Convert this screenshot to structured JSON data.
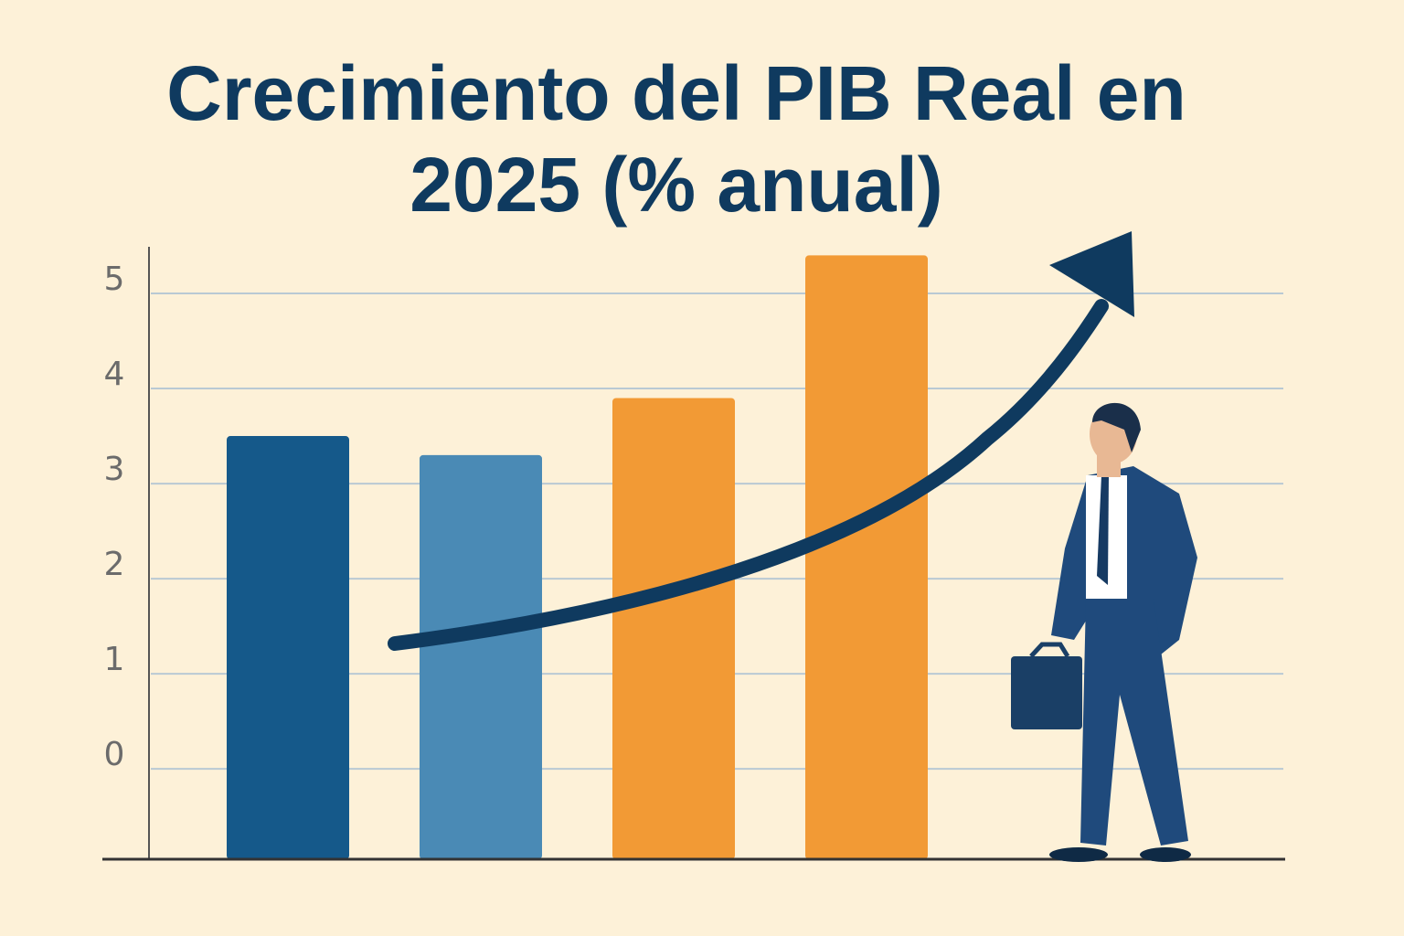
{
  "chart_data": {
    "type": "bar",
    "title": "Crecimiento del PIB Real en 2025 (% anual)",
    "categories": [
      null,
      null,
      null,
      null
    ],
    "values": [
      3.5,
      3.3,
      3.9,
      5.4
    ],
    "colors": [
      "#15598a",
      "#4a8ab5",
      "#f29a35",
      "#f29a35"
    ],
    "ylim": [
      -0.95,
      5.5
    ],
    "yticks": [
      0,
      1,
      2,
      3,
      4,
      5
    ],
    "grid": true
  }
}
